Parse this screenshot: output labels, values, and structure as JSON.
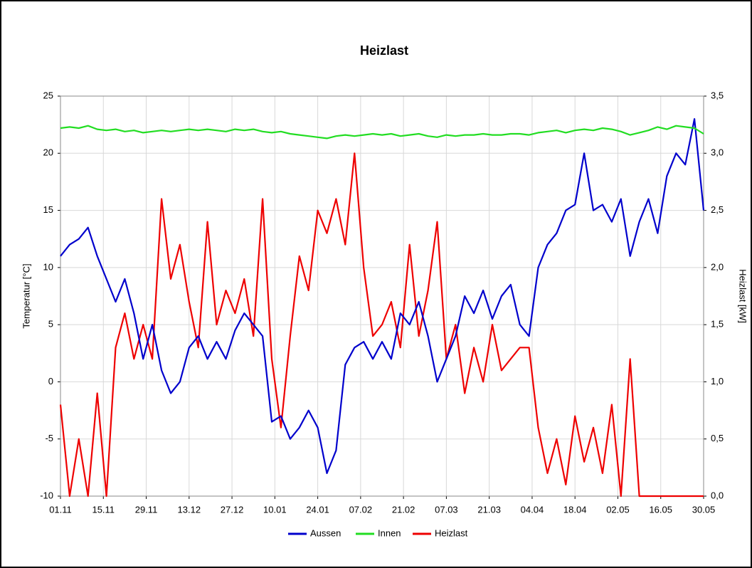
{
  "chart_data": {
    "type": "line",
    "title": "Heizlast",
    "y_label": "Temperatur [°C]",
    "y2_label": "Heizlast [kW]",
    "x": [
      0,
      3,
      6,
      9,
      12,
      15,
      18,
      21,
      24,
      27,
      30,
      33,
      36,
      39,
      42,
      45,
      48,
      51,
      54,
      57,
      60,
      63,
      66,
      69,
      72,
      75,
      78,
      81,
      84,
      87,
      90,
      93,
      96,
      99,
      102,
      105,
      108,
      111,
      114,
      117,
      120,
      123,
      126,
      129,
      132,
      135,
      138,
      141,
      144,
      147,
      150,
      153,
      156,
      159,
      162,
      165,
      168,
      171,
      174,
      177,
      180,
      183,
      186,
      189,
      192,
      195,
      198,
      201,
      204,
      207,
      210
    ],
    "xlim": [
      0,
      210
    ],
    "xticks": [
      {
        "value": 0,
        "label": "01.11"
      },
      {
        "value": 14,
        "label": "15.11"
      },
      {
        "value": 28,
        "label": "29.11"
      },
      {
        "value": 42,
        "label": "13.12"
      },
      {
        "value": 56,
        "label": "27.12"
      },
      {
        "value": 70,
        "label": "10.01"
      },
      {
        "value": 84,
        "label": "24.01"
      },
      {
        "value": 98,
        "label": "07.02"
      },
      {
        "value": 112,
        "label": "21.02"
      },
      {
        "value": 126,
        "label": "07.03"
      },
      {
        "value": 140,
        "label": "21.03"
      },
      {
        "value": 154,
        "label": "04.04"
      },
      {
        "value": 168,
        "label": "18.04"
      },
      {
        "value": 182,
        "label": "02.05"
      },
      {
        "value": 196,
        "label": "16.05"
      },
      {
        "value": 210,
        "label": "30.05"
      }
    ],
    "ylim": [
      -10,
      25
    ],
    "yticks": [
      -10,
      -5,
      0,
      5,
      10,
      15,
      20,
      25
    ],
    "y2lim": [
      0,
      3.5
    ],
    "y2ticks": [
      {
        "value": 0,
        "label": "0,0"
      },
      {
        "value": 0.5,
        "label": "0,5"
      },
      {
        "value": 1,
        "label": "1,0"
      },
      {
        "value": 1.5,
        "label": "1,5"
      },
      {
        "value": 2,
        "label": "2,0"
      },
      {
        "value": 2.5,
        "label": "2,5"
      },
      {
        "value": 3,
        "label": "3,0"
      },
      {
        "value": 3.5,
        "label": "3,5"
      }
    ],
    "grid": true,
    "legend": "bottom",
    "series": [
      {
        "name": "Aussen",
        "color": "#0000cc",
        "values": [
          11,
          12,
          12.5,
          13.5,
          11,
          9,
          7,
          9,
          6,
          2,
          5,
          1,
          -1,
          0,
          3,
          4,
          2,
          3.5,
          2,
          4.5,
          6,
          5,
          4,
          -3.5,
          -3,
          -5,
          -4,
          -2.5,
          -4,
          -8,
          -6,
          1.5,
          3,
          3.5,
          2,
          3.5,
          2,
          6,
          5,
          7,
          4,
          0,
          2,
          4,
          7.5,
          6,
          8,
          5.5,
          7.5,
          8.5,
          5,
          4,
          10,
          12,
          13,
          15,
          15.5,
          20,
          15,
          15.5,
          14,
          16,
          11,
          14,
          16,
          13,
          18,
          20,
          19,
          23,
          15
        ]
      },
      {
        "name": "Innen",
        "color": "#22dd22",
        "values": [
          22.2,
          22.3,
          22.2,
          22.4,
          22.1,
          22.0,
          22.1,
          21.9,
          22.0,
          21.8,
          21.9,
          22.0,
          21.9,
          22.0,
          22.1,
          22.0,
          22.1,
          22.0,
          21.9,
          22.1,
          22.0,
          22.1,
          21.9,
          21.8,
          21.9,
          21.7,
          21.6,
          21.5,
          21.4,
          21.3,
          21.5,
          21.6,
          21.5,
          21.6,
          21.7,
          21.6,
          21.7,
          21.5,
          21.6,
          21.7,
          21.5,
          21.4,
          21.6,
          21.5,
          21.6,
          21.6,
          21.7,
          21.6,
          21.6,
          21.7,
          21.7,
          21.6,
          21.8,
          21.9,
          22.0,
          21.8,
          22.0,
          22.1,
          22.0,
          22.2,
          22.1,
          21.9,
          21.6,
          21.8,
          22.0,
          22.3,
          22.1,
          22.4,
          22.3,
          22.2,
          21.7
        ]
      },
      {
        "name": "Heizlast",
        "color": "#ee0000",
        "axis": "y2",
        "values": [
          0.8,
          0,
          0.5,
          0,
          0.9,
          0,
          1.3,
          1.6,
          1.2,
          1.5,
          1.2,
          2.6,
          1.9,
          2.2,
          1.7,
          1.3,
          2.4,
          1.5,
          1.8,
          1.6,
          1.9,
          1.4,
          2.6,
          1.2,
          0.6,
          1.4,
          2.1,
          1.8,
          2.5,
          2.3,
          2.6,
          2.2,
          3.0,
          2.0,
          1.4,
          1.5,
          1.7,
          1.3,
          2.2,
          1.4,
          1.8,
          2.4,
          1.2,
          1.5,
          0.9,
          1.3,
          1.0,
          1.5,
          1.1,
          1.2,
          1.3,
          1.3,
          0.6,
          0.2,
          0.5,
          0.1,
          0.7,
          0.3,
          0.6,
          0.2,
          0.8,
          0,
          1.2,
          0,
          0,
          0,
          0,
          0,
          0,
          0,
          0
        ]
      }
    ]
  }
}
